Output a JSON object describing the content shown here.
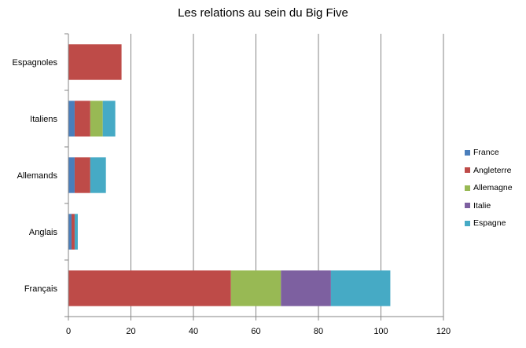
{
  "chart_data": {
    "type": "bar",
    "orientation": "horizontal",
    "stacked": true,
    "title": "Les relations au sein du Big Five",
    "categories": [
      "Français",
      "Anglais",
      "Allemands",
      "Italiens",
      "Espagnoles"
    ],
    "series": [
      {
        "name": "France",
        "color": "#4a7ebb",
        "values": [
          0,
          1,
          2,
          2,
          0
        ]
      },
      {
        "name": "Angleterre",
        "color": "#be4b48",
        "values": [
          52,
          1,
          5,
          5,
          17
        ]
      },
      {
        "name": "Allemagne",
        "color": "#98b954",
        "values": [
          16,
          0,
          0,
          4,
          0
        ]
      },
      {
        "name": "Italie",
        "color": "#7d60a0",
        "values": [
          16,
          0,
          0,
          0,
          0
        ]
      },
      {
        "name": "Espagne",
        "color": "#46aac5",
        "values": [
          19,
          1,
          5,
          4,
          0
        ]
      }
    ],
    "xlim": [
      0,
      120
    ],
    "xticks": [
      0,
      20,
      40,
      60,
      80,
      100,
      120
    ],
    "grid": "vertical",
    "legend": "right"
  }
}
